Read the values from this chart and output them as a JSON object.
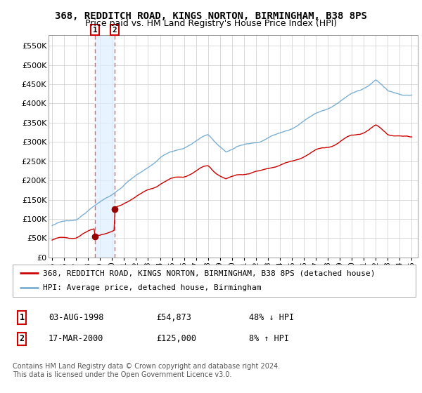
{
  "title": "368, REDDITCH ROAD, KINGS NORTON, BIRMINGHAM, B38 8PS",
  "subtitle": "Price paid vs. HM Land Registry's House Price Index (HPI)",
  "ylim": [
    0,
    577000
  ],
  "yticks": [
    0,
    50000,
    100000,
    150000,
    200000,
    250000,
    300000,
    350000,
    400000,
    450000,
    500000,
    550000
  ],
  "ytick_labels": [
    "£0",
    "£50K",
    "£100K",
    "£150K",
    "£200K",
    "£250K",
    "£300K",
    "£350K",
    "£400K",
    "£450K",
    "£500K",
    "£550K"
  ],
  "xlim_start": 1994.7,
  "xlim_end": 2025.5,
  "xtick_years": [
    1995,
    1996,
    1997,
    1998,
    1999,
    2000,
    2001,
    2002,
    2003,
    2004,
    2005,
    2006,
    2007,
    2008,
    2009,
    2010,
    2011,
    2012,
    2013,
    2014,
    2015,
    2016,
    2017,
    2018,
    2019,
    2020,
    2021,
    2022,
    2023,
    2024,
    2025
  ],
  "grid_color": "#cccccc",
  "plot_bg": "#ffffff",
  "fig_bg": "#ffffff",
  "line1_color": "#cc0000",
  "line2_color": "#7bafd4",
  "sale1_x": 1998.58,
  "sale1_y": 54873,
  "sale2_x": 2000.21,
  "sale2_y": 125000,
  "marker_color": "#990000",
  "vline_color": "#dd6666",
  "shade_color": "#ddeeff",
  "legend_label1": "368, REDDITCH ROAD, KINGS NORTON, BIRMINGHAM, B38 8PS (detached house)",
  "legend_label2": "HPI: Average price, detached house, Birmingham",
  "table_rows": [
    {
      "num": "1",
      "date": "03-AUG-1998",
      "price": "£54,873",
      "rel": "48% ↓ HPI"
    },
    {
      "num": "2",
      "date": "17-MAR-2000",
      "price": "£125,000",
      "rel": "8% ↑ HPI"
    }
  ],
  "footnote": "Contains HM Land Registry data © Crown copyright and database right 2024.\nThis data is licensed under the Open Government Licence v3.0.",
  "title_fontsize": 10,
  "subtitle_fontsize": 9,
  "axis_fontsize": 8,
  "legend_fontsize": 8,
  "table_fontsize": 8.5,
  "footnote_fontsize": 7
}
